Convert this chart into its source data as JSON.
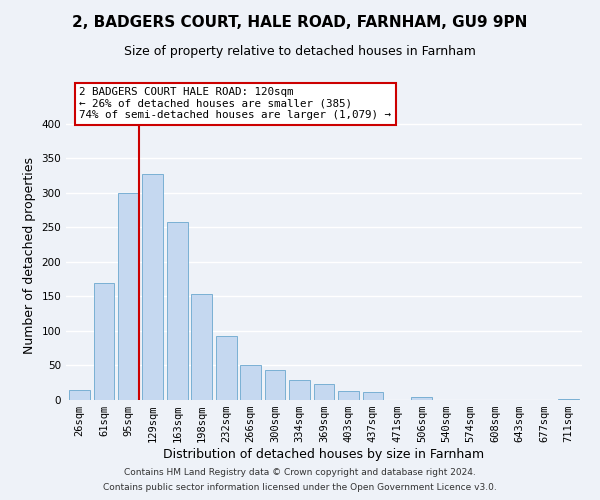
{
  "title": "2, BADGERS COURT, HALE ROAD, FARNHAM, GU9 9PN",
  "subtitle": "Size of property relative to detached houses in Farnham",
  "xlabel": "Distribution of detached houses by size in Farnham",
  "ylabel": "Number of detached properties",
  "bar_labels": [
    "26sqm",
    "61sqm",
    "95sqm",
    "129sqm",
    "163sqm",
    "198sqm",
    "232sqm",
    "266sqm",
    "300sqm",
    "334sqm",
    "369sqm",
    "403sqm",
    "437sqm",
    "471sqm",
    "506sqm",
    "540sqm",
    "574sqm",
    "608sqm",
    "643sqm",
    "677sqm",
    "711sqm"
  ],
  "bar_heights": [
    15,
    170,
    300,
    328,
    258,
    153,
    92,
    50,
    43,
    29,
    23,
    13,
    11,
    0,
    5,
    0,
    0,
    0,
    0,
    0,
    2
  ],
  "bar_color": "#c5d8f0",
  "bar_edge_color": "#7ab0d4",
  "highlight_line_color": "#cc0000",
  "annotation_title": "2 BADGERS COURT HALE ROAD: 120sqm",
  "annotation_line1": "← 26% of detached houses are smaller (385)",
  "annotation_line2": "74% of semi-detached houses are larger (1,079) →",
  "annotation_box_color": "#ffffff",
  "annotation_box_edge": "#cc0000",
  "ylim": [
    0,
    420
  ],
  "footer1": "Contains HM Land Registry data © Crown copyright and database right 2024.",
  "footer2": "Contains public sector information licensed under the Open Government Licence v3.0.",
  "background_color": "#eef2f8",
  "grid_color": "#ffffff",
  "title_fontsize": 11,
  "subtitle_fontsize": 9,
  "axis_label_fontsize": 9,
  "tick_fontsize": 7.5,
  "footer_fontsize": 6.5
}
